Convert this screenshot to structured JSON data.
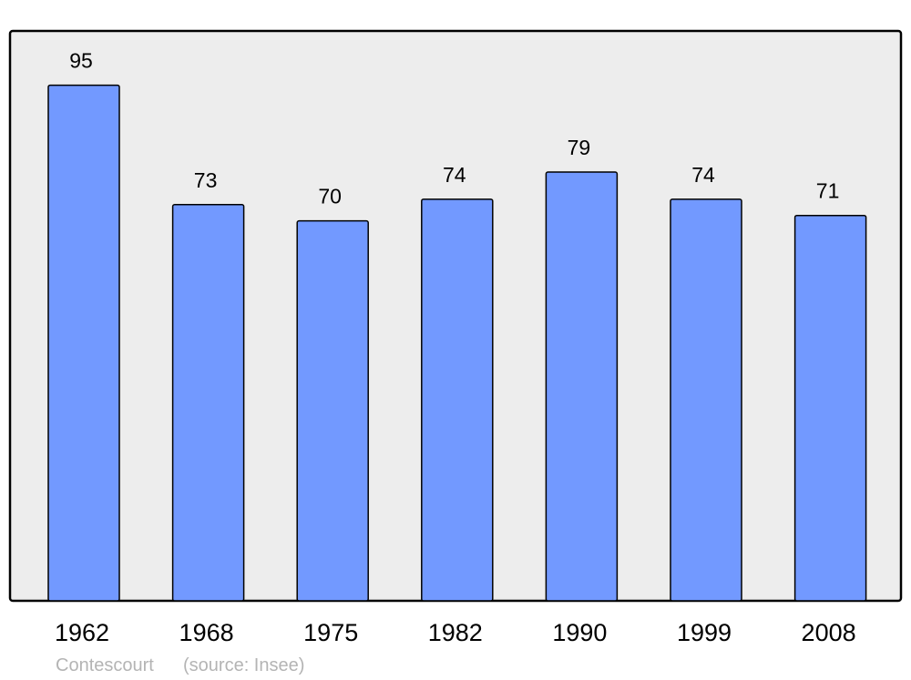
{
  "chart_data": {
    "type": "bar",
    "categories": [
      "1962",
      "1968",
      "1975",
      "1982",
      "1990",
      "1999",
      "2008"
    ],
    "values": [
      95,
      73,
      70,
      74,
      79,
      74,
      71
    ],
    "data_labels": [
      "95",
      "73",
      "70",
      "74",
      "79",
      "74",
      "71"
    ],
    "ylim": [
      0,
      105
    ],
    "grid": false,
    "colors": {
      "bar": "#7299ff",
      "plot_background": "#ededed",
      "stroke": "#000000",
      "footer": "#b4b4b4"
    }
  },
  "footer": {
    "place": "Contescourt",
    "source": "(source: Insee)"
  }
}
